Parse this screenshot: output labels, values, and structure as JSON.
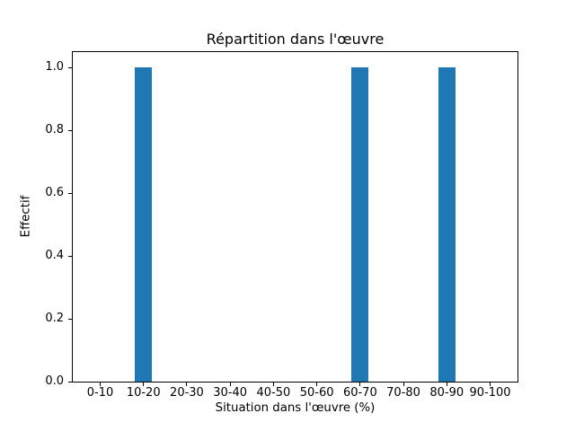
{
  "chart_data": {
    "type": "bar",
    "title": "Répartition dans l'œuvre",
    "xlabel": "Situation dans l'œuvre (%)",
    "ylabel": "Effectif",
    "categories": [
      "0-10",
      "10-20",
      "20-30",
      "30-40",
      "40-50",
      "50-60",
      "60-70",
      "70-80",
      "80-90",
      "90-100"
    ],
    "values": [
      0,
      1,
      0,
      0,
      0,
      0,
      1,
      0,
      1,
      0
    ],
    "ytick_labels": [
      "0.0",
      "0.2",
      "0.4",
      "0.6",
      "0.8",
      "1.0"
    ],
    "ytick_values": [
      0.0,
      0.2,
      0.4,
      0.6,
      0.8,
      1.0
    ],
    "ylim": [
      0,
      1.05
    ],
    "grid": false,
    "legend_position": "none",
    "bar_color": "#1f77b4",
    "axis_color": "#000000",
    "background_color": "#ffffff"
  }
}
